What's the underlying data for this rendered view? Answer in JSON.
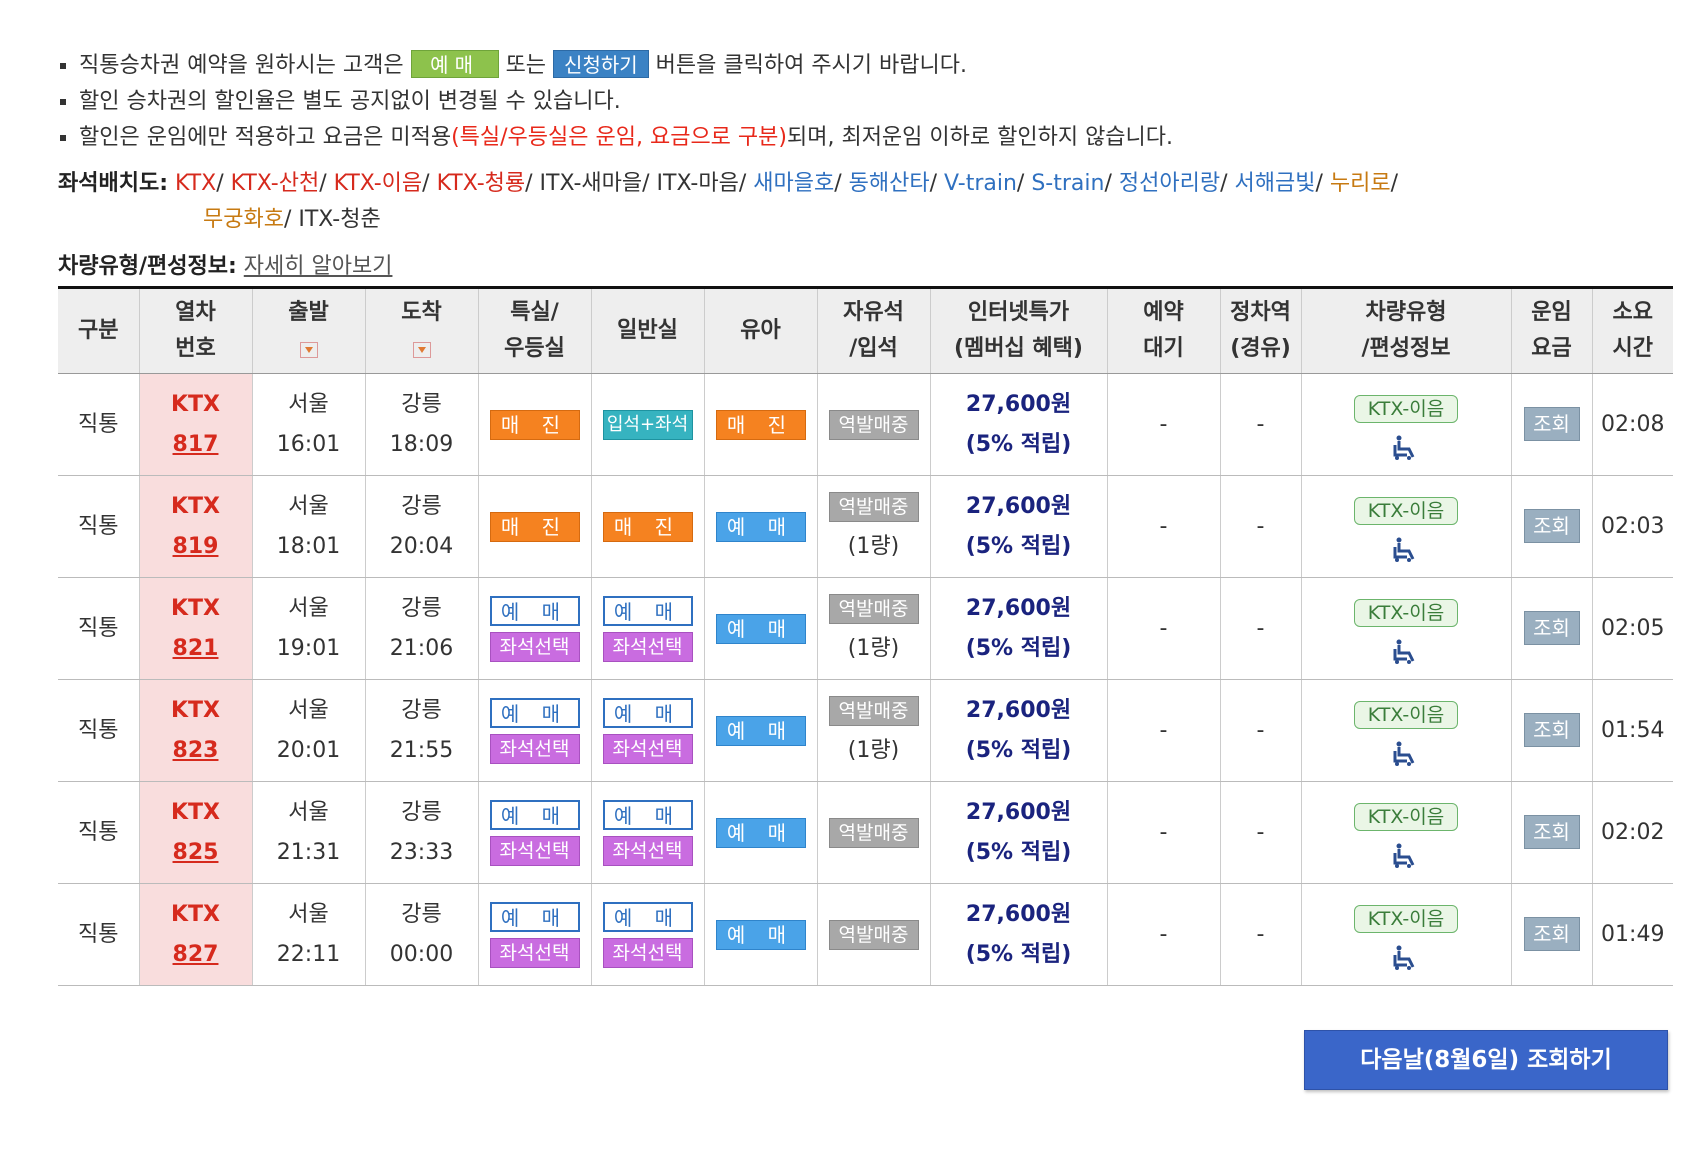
{
  "notes": {
    "line1": {
      "before": "직통승차권 예약을 원하시는 고객은 ",
      "btn1": "예매",
      "mid": " 또는 ",
      "btn2": "신청하기",
      "after": " 버튼을 클릭하여 주시기 바랍니다."
    },
    "line2": "할인 승차권의 할인율은 별도 공지없이 변경될 수 있습니다.",
    "line3": {
      "before": "할인은 운임에만 적용하고 요금은 미적용",
      "red": "(특실/우등실은 운임, 요금으로 구분)",
      "after": "되며, 최저운임 이하로 할인하지 않습니다."
    }
  },
  "seatmap": {
    "label": "좌석배치도:",
    "items": [
      {
        "name": "KTX",
        "color": "#d62a1d"
      },
      {
        "name": "KTX-산천",
        "color": "#d62a1d"
      },
      {
        "name": "KTX-이음",
        "color": "#d62a1d"
      },
      {
        "name": "KTX-청룡",
        "color": "#d62a1d"
      },
      {
        "name": "ITX-새마을",
        "color": "#333333"
      },
      {
        "name": "ITX-마음",
        "color": "#333333"
      },
      {
        "name": "새마을호",
        "color": "#2f70c0"
      },
      {
        "name": "동해산타",
        "color": "#2f70c0"
      },
      {
        "name": "V-train",
        "color": "#2f70c0"
      },
      {
        "name": "S-train",
        "color": "#2f70c0"
      },
      {
        "name": "정선아리랑",
        "color": "#2f70c0"
      },
      {
        "name": "서해금빛",
        "color": "#2f70c0"
      },
      {
        "name": "누리로",
        "color": "#c77a12"
      },
      {
        "name": "무궁화호",
        "color": "#c77a12"
      },
      {
        "name": "ITX-청춘",
        "color": "#333333"
      }
    ]
  },
  "vehinfo": {
    "label": "차량유형/편성정보:",
    "link": "자세히 알아보기"
  },
  "table": {
    "headers": {
      "type": "구분",
      "train_no_1": "열차",
      "train_no_2": "번호",
      "depart": "출발",
      "arrive": "도착",
      "first_1": "특실/",
      "first_2": "우등실",
      "general": "일반실",
      "infant": "유아",
      "free_1": "자유석",
      "free_2": "/입석",
      "internet_1": "인터넷특가",
      "internet_2": "(멤버십 혜택)",
      "waitlist_1": "예약",
      "waitlist_2": "대기",
      "stop_1": "정차역",
      "stop_2": "(경유)",
      "vehicle_1": "차량유형",
      "vehicle_2": "/편성정보",
      "fare_1": "운임",
      "fare_2": "요금",
      "duration_1": "소요",
      "duration_2": "시간"
    },
    "rows": [
      {
        "type": "직통",
        "train_type": "KTX",
        "train_no": "817",
        "dep_station": "서울",
        "dep_time": "16:01",
        "arr_station": "강릉",
        "arr_time": "18:09",
        "first": "매 진",
        "general": "입석+좌석",
        "infant": "매 진",
        "free": "역발매중",
        "free_sub": "",
        "price": "27,600원",
        "benefit": "(5% 적립)",
        "waitlist": "-",
        "stops": "-",
        "vehicle": "KTX-이음",
        "fare_btn": "조회",
        "duration": "02:08"
      },
      {
        "type": "직통",
        "train_type": "KTX",
        "train_no": "819",
        "dep_station": "서울",
        "dep_time": "18:01",
        "arr_station": "강릉",
        "arr_time": "20:04",
        "first": "매 진",
        "general": "매 진",
        "infant": "예 매",
        "free": "역발매중",
        "free_sub": "(1량)",
        "price": "27,600원",
        "benefit": "(5% 적립)",
        "waitlist": "-",
        "stops": "-",
        "vehicle": "KTX-이음",
        "fare_btn": "조회",
        "duration": "02:03"
      },
      {
        "type": "직통",
        "train_type": "KTX",
        "train_no": "821",
        "dep_station": "서울",
        "dep_time": "19:01",
        "arr_station": "강릉",
        "arr_time": "21:06",
        "first": "예 매",
        "first_seat": "좌석선택",
        "general": "예 매",
        "general_seat": "좌석선택",
        "infant": "예 매",
        "free": "역발매중",
        "free_sub": "(1량)",
        "price": "27,600원",
        "benefit": "(5% 적립)",
        "waitlist": "-",
        "stops": "-",
        "vehicle": "KTX-이음",
        "fare_btn": "조회",
        "duration": "02:05"
      },
      {
        "type": "직통",
        "train_type": "KTX",
        "train_no": "823",
        "dep_station": "서울",
        "dep_time": "20:01",
        "arr_station": "강릉",
        "arr_time": "21:55",
        "first": "예 매",
        "first_seat": "좌석선택",
        "general": "예 매",
        "general_seat": "좌석선택",
        "infant": "예 매",
        "free": "역발매중",
        "free_sub": "(1량)",
        "price": "27,600원",
        "benefit": "(5% 적립)",
        "waitlist": "-",
        "stops": "-",
        "vehicle": "KTX-이음",
        "fare_btn": "조회",
        "duration": "01:54"
      },
      {
        "type": "직통",
        "train_type": "KTX",
        "train_no": "825",
        "dep_station": "서울",
        "dep_time": "21:31",
        "arr_station": "강릉",
        "arr_time": "23:33",
        "first": "예 매",
        "first_seat": "좌석선택",
        "general": "예 매",
        "general_seat": "좌석선택",
        "infant": "예 매",
        "free": "역발매중",
        "free_sub": "",
        "price": "27,600원",
        "benefit": "(5% 적립)",
        "waitlist": "-",
        "stops": "-",
        "vehicle": "KTX-이음",
        "fare_btn": "조회",
        "duration": "02:02"
      },
      {
        "type": "직통",
        "train_type": "KTX",
        "train_no": "827",
        "dep_station": "서울",
        "dep_time": "22:11",
        "arr_station": "강릉",
        "arr_time": "00:00",
        "first": "예 매",
        "first_seat": "좌석선택",
        "general": "예 매",
        "general_seat": "좌석선택",
        "infant": "예 매",
        "free": "역발매중",
        "free_sub": "",
        "price": "27,600원",
        "benefit": "(5% 적립)",
        "waitlist": "-",
        "stops": "-",
        "vehicle": "KTX-이음",
        "fare_btn": "조회",
        "duration": "01:49"
      }
    ]
  },
  "next_button": "다음날(8월6일) 조회하기",
  "icons": {
    "sort": "sort-down-icon",
    "wheelchair": "wheelchair-icon"
  },
  "colors": {
    "sold_out": "#f58220",
    "reserve": "#4aa3e8",
    "seat_select": "#c96ce0",
    "train_no_bg": "#f9dddd",
    "price": "#1a237e",
    "next_btn": "#3a66c9"
  }
}
